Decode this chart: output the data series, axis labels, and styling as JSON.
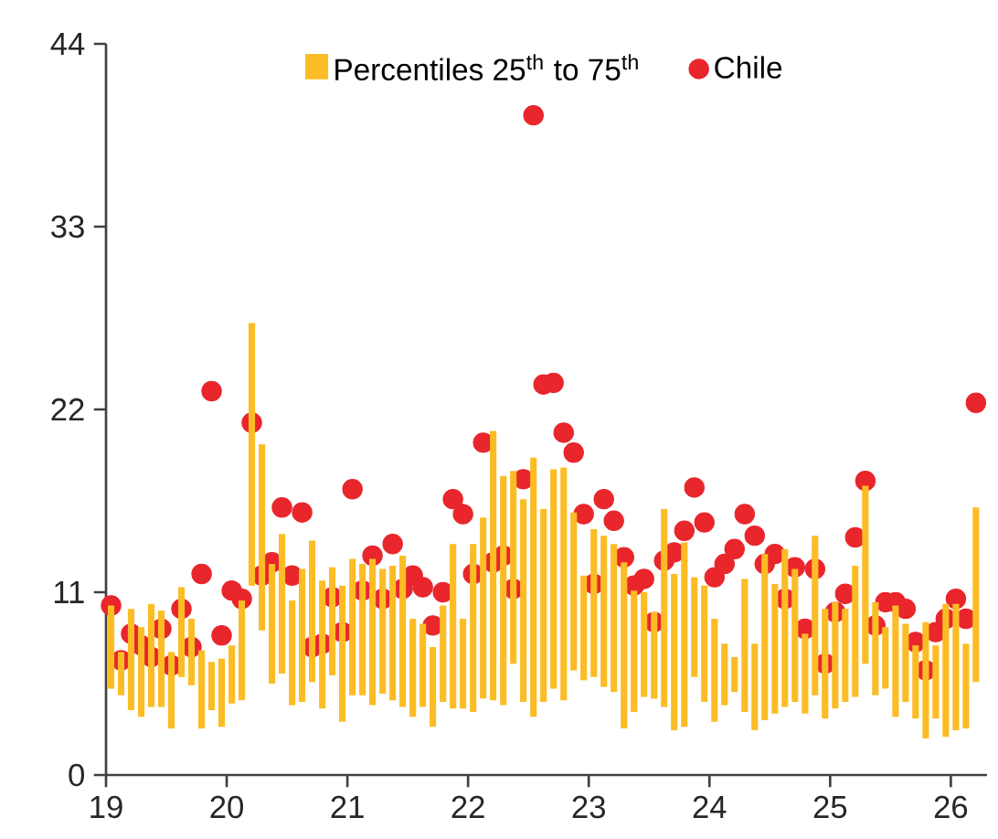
{
  "chart_data": {
    "type": "bar",
    "legend": "top",
    "xlim": [
      2019,
      2026.3
    ],
    "xticks": [
      {
        "value": 2019,
        "label": "19"
      },
      {
        "value": 2020,
        "label": "20"
      },
      {
        "value": 2021,
        "label": "21"
      },
      {
        "value": 2022,
        "label": "22"
      },
      {
        "value": 2023,
        "label": "23"
      },
      {
        "value": 2024,
        "label": "24"
      },
      {
        "value": 2025,
        "label": "25"
      },
      {
        "value": 2026,
        "label": "26"
      }
    ],
    "ylim": [
      0,
      44
    ],
    "yticks": [
      0,
      11,
      22,
      33,
      44
    ],
    "x": [
      2019.042,
      2019.125,
      2019.208,
      2019.292,
      2019.375,
      2019.458,
      2019.542,
      2019.625,
      2019.708,
      2019.792,
      2019.875,
      2019.958,
      2020.042,
      2020.125,
      2020.208,
      2020.292,
      2020.375,
      2020.458,
      2020.542,
      2020.625,
      2020.708,
      2020.792,
      2020.875,
      2020.958,
      2021.042,
      2021.125,
      2021.208,
      2021.292,
      2021.375,
      2021.458,
      2021.542,
      2021.625,
      2021.708,
      2021.792,
      2021.875,
      2021.958,
      2022.042,
      2022.125,
      2022.208,
      2022.292,
      2022.375,
      2022.458,
      2022.542,
      2022.625,
      2022.708,
      2022.792,
      2022.875,
      2022.958,
      2023.042,
      2023.125,
      2023.208,
      2023.292,
      2023.375,
      2023.458,
      2023.542,
      2023.625,
      2023.708,
      2023.792,
      2023.875,
      2023.958,
      2024.042,
      2024.125,
      2024.208,
      2024.292,
      2024.375,
      2024.458,
      2024.542,
      2024.625,
      2024.708,
      2024.792,
      2024.875,
      2024.958,
      2025.042,
      2025.125,
      2025.208,
      2025.292,
      2025.375,
      2025.458,
      2025.542,
      2025.625,
      2025.708,
      2025.792,
      2025.875,
      2025.958,
      2026.042,
      2026.125,
      2026.208
    ],
    "series": [
      {
        "name": "Percentiles 25$^{th}$ to 75$^{th}$",
        "color": "#fbbc25",
        "base": [
          5.2,
          4.8,
          3.9,
          3.5,
          4.1,
          4.1,
          2.8,
          5.9,
          5.4,
          2.8,
          3.9,
          2.9,
          4.3,
          4.5,
          11.4,
          8.7,
          5.5,
          6.1,
          4.2,
          4.4,
          5.6,
          4.0,
          6.0,
          3.2,
          4.8,
          4.8,
          4.2,
          4.9,
          4.5,
          4.1,
          3.5,
          4.1,
          2.9,
          4.4,
          4.0,
          4.0,
          3.8,
          4.6,
          4.5,
          4.2,
          6.7,
          4.4,
          3.5,
          4.4,
          5.2,
          4.5,
          6.3,
          5.7,
          5.9,
          5.3,
          5.0,
          2.8,
          3.8,
          4.7,
          4.6,
          4.1,
          2.7,
          2.9,
          5.9,
          4.4,
          3.2,
          4.2,
          5.0,
          3.8,
          2.7,
          3.3,
          3.7,
          4.1,
          4.4,
          3.7,
          4.8,
          3.4,
          4.0,
          4.4,
          4.7,
          6.7,
          4.8,
          5.2,
          3.5,
          4.4,
          3.4,
          2.2,
          3.4,
          2.3,
          2.7,
          2.8,
          5.6
        ],
        "values": [
          5.0,
          2.6,
          6.1,
          5.4,
          6.2,
          5.8,
          4.6,
          5.4,
          4.0,
          4.7,
          2.9,
          4.1,
          3.5,
          6.0,
          15.8,
          11.2,
          7.2,
          8.4,
          6.3,
          8.0,
          8.5,
          7.7,
          6.5,
          8.2,
          8.2,
          7.9,
          8.8,
          7.5,
          8.1,
          9.1,
          5.9,
          5.0,
          4.8,
          5.8,
          9.9,
          5.4,
          10.1,
          10.9,
          16.2,
          13.8,
          11.6,
          12.2,
          15.6,
          11.6,
          13.2,
          14.0,
          9.5,
          6.3,
          8.9,
          9.1,
          8.9,
          10.0,
          7.3,
          6.3,
          5.2,
          11.9,
          9.4,
          11.1,
          6.0,
          7.0,
          6.2,
          3.7,
          2.1,
          8.0,
          5.2,
          10.0,
          7.8,
          9.5,
          8.0,
          4.8,
          9.6,
          6.6,
          6.4,
          5.6,
          7.9,
          10.7,
          5.6,
          3.7,
          6.7,
          4.7,
          4.4,
          7.0,
          4.4,
          8.0,
          7.6,
          5.1,
          10.5
        ]
      },
      {
        "name": "Chile",
        "type": "scatter",
        "color": "#e8262c",
        "marker": "circle",
        "values": [
          10.2,
          6.9,
          8.5,
          7.8,
          7.1,
          8.8,
          6.6,
          10.0,
          7.7,
          12.1,
          23.1,
          8.4,
          11.1,
          10.6,
          21.2,
          12.0,
          12.8,
          16.1,
          12.0,
          15.8,
          7.7,
          7.9,
          10.7,
          8.6,
          17.2,
          11.1,
          13.2,
          10.6,
          13.9,
          11.2,
          12.0,
          11.3,
          9.0,
          11.0,
          16.6,
          15.7,
          12.1,
          20.0,
          12.8,
          13.2,
          11.2,
          17.8,
          39.7,
          23.5,
          23.6,
          20.6,
          19.4,
          15.7,
          11.5,
          16.6,
          15.3,
          13.1,
          11.4,
          11.8,
          9.2,
          12.9,
          13.4,
          14.7,
          17.3,
          15.2,
          11.9,
          12.7,
          13.6,
          15.7,
          14.4,
          12.7,
          13.3,
          10.6,
          12.5,
          8.8,
          12.4,
          6.7,
          9.8,
          10.9,
          14.3,
          17.7,
          9.0,
          10.4,
          10.4,
          10.0,
          8.0,
          6.3,
          8.6,
          9.4,
          10.6,
          9.4,
          22.4
        ]
      }
    ]
  }
}
